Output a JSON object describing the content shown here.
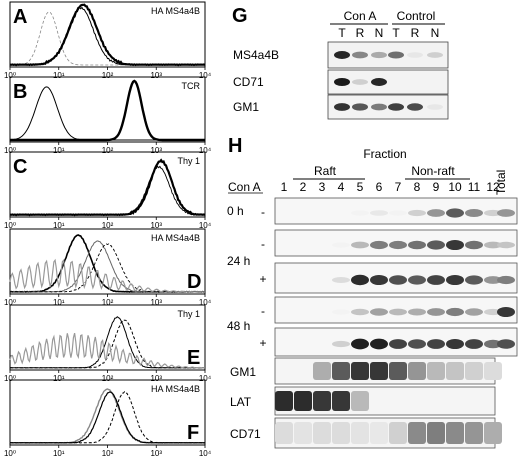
{
  "flow": {
    "x_ticks": [
      "10⁰",
      "10¹",
      "10²",
      "10³",
      "10⁴"
    ],
    "panels": [
      {
        "letter": "A",
        "label": "HA MS4a4B"
      },
      {
        "letter": "B",
        "label": "TCR"
      },
      {
        "letter": "C",
        "label": "Thy 1"
      },
      {
        "letter": "D",
        "label": "HA MS4a4B"
      },
      {
        "letter": "E",
        "label": "Thy 1"
      },
      {
        "letter": "F",
        "label": "HA MS4a4B"
      }
    ]
  },
  "panel_g": {
    "letter": "G",
    "groups": [
      "Con A",
      "Control"
    ],
    "lanes": [
      "T",
      "R",
      "N",
      "T",
      "R",
      "N"
    ],
    "rows": [
      "MS4a4B",
      "CD71",
      "GM1"
    ]
  },
  "panel_h": {
    "letter": "H",
    "title": "Fraction",
    "raft_label": "Raft",
    "nonraft_label": "Non-raft",
    "cona_label": "Con A",
    "fractions": [
      "1",
      "2",
      "3",
      "4",
      "5",
      "6",
      "7",
      "8",
      "9",
      "10",
      "11",
      "12"
    ],
    "total_label": "Total",
    "time_labels": [
      "0 h",
      "24 h",
      "48 h"
    ],
    "row_signs": [
      "-",
      "-",
      "+",
      "-",
      "+"
    ],
    "markers": [
      "GM1",
      "LAT",
      "CD71"
    ]
  }
}
